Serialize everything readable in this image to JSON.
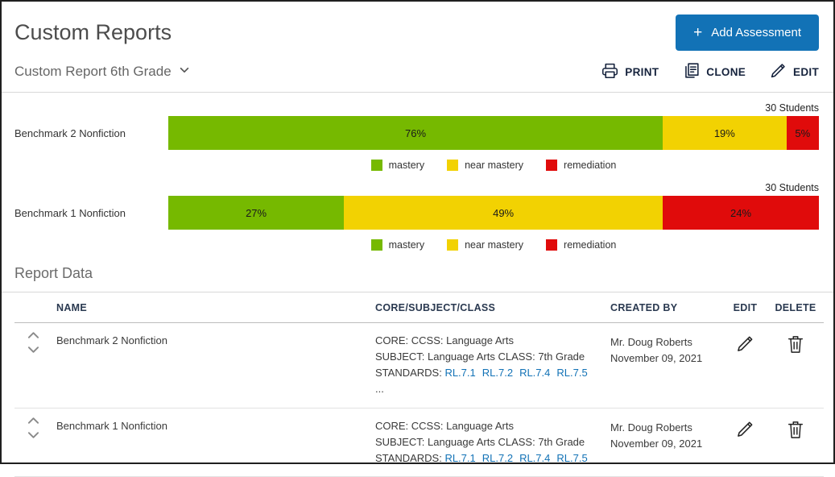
{
  "page": {
    "title": "Custom Reports"
  },
  "header": {
    "add_assessment_label": "Add Assessment",
    "plus_glyph": "+"
  },
  "report_selector": {
    "label": "Custom Report 6th Grade"
  },
  "toolbar": {
    "print_label": "PRINT",
    "clone_label": "CLONE",
    "edit_label": "EDIT"
  },
  "colors": {
    "mastery": "#76b900",
    "near_mastery": "#f2d202",
    "remediation": "#e00b0b",
    "accent_blue": "#1272b6"
  },
  "chart_data": [
    {
      "type": "bar",
      "stacked": true,
      "label": "Benchmark 2 Nonfiction",
      "students_label": "30 Students",
      "segments": [
        {
          "name": "mastery",
          "value": 76,
          "color": "#76b900"
        },
        {
          "name": "near mastery",
          "value": 19,
          "color": "#f2d202"
        },
        {
          "name": "remediation",
          "value": 5,
          "color": "#e00b0b"
        }
      ],
      "legend": [
        "mastery",
        "near mastery",
        "remediation"
      ]
    },
    {
      "type": "bar",
      "stacked": true,
      "label": "Benchmark 1 Nonfiction",
      "students_label": "30 Students",
      "segments": [
        {
          "name": "mastery",
          "value": 27,
          "color": "#76b900"
        },
        {
          "name": "near mastery",
          "value": 49,
          "color": "#f2d202"
        },
        {
          "name": "remediation",
          "value": 24,
          "color": "#e00b0b"
        }
      ],
      "legend": [
        "mastery",
        "near mastery",
        "remediation"
      ]
    }
  ],
  "report_data": {
    "title": "Report Data",
    "columns": {
      "name": "NAME",
      "core": "CORE/SUBJECT/CLASS",
      "created_by": "CREATED BY",
      "edit": "EDIT",
      "delete": "DELETE"
    },
    "rows": [
      {
        "name": "Benchmark 2 Nonfiction",
        "core_line": "CORE: CCSS: Language Arts",
        "subject_line": "SUBJECT: Language Arts CLASS: 7th Grade",
        "standards_label": "STANDARDS:",
        "standards": [
          "RL.7.1",
          "RL.7.2",
          "RL.7.4",
          "RL.7.5"
        ],
        "standards_overflow": "...",
        "created_by": "Mr. Doug Roberts",
        "created_date": "November 09, 2021"
      },
      {
        "name": "Benchmark 1 Nonfiction",
        "core_line": "CORE: CCSS: Language Arts",
        "subject_line": "SUBJECT: Language Arts CLASS: 7th Grade",
        "standards_label": "STANDARDS:",
        "standards": [
          "RL.7.1",
          "RL.7.2",
          "RL.7.4",
          "RL.7.5"
        ],
        "standards_overflow": "",
        "created_by": "Mr. Doug Roberts",
        "created_date": "November 09, 2021"
      }
    ]
  }
}
